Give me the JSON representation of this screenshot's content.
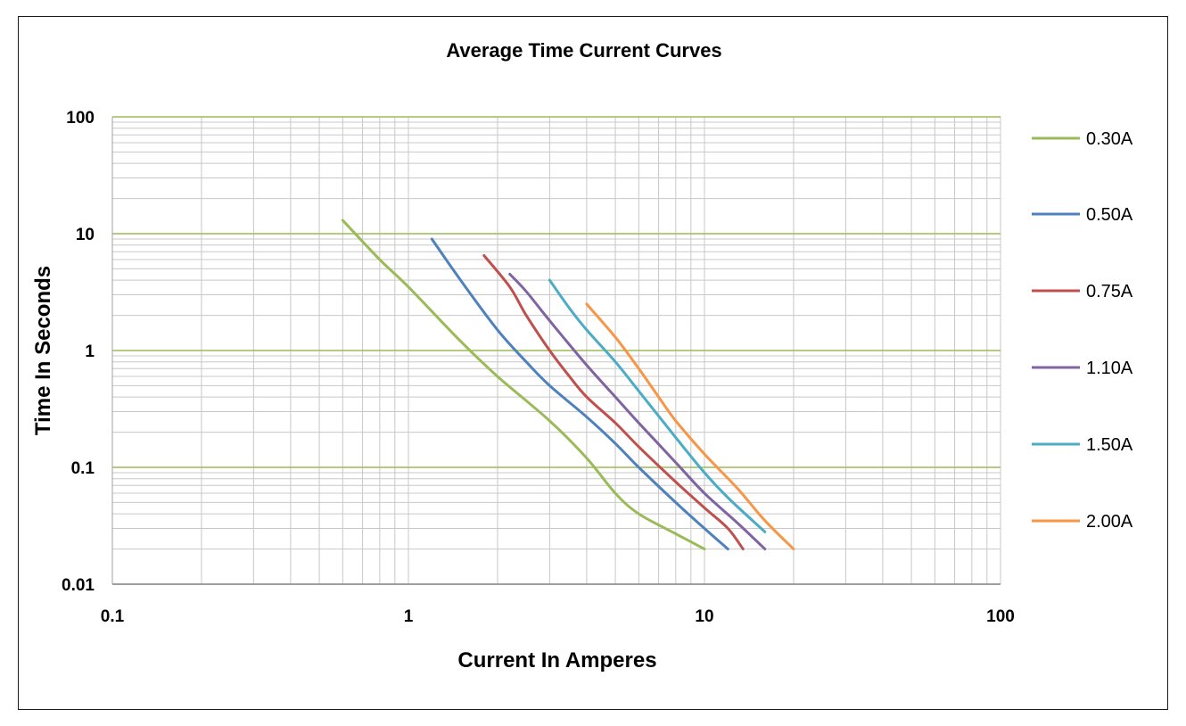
{
  "chart_data": {
    "type": "line",
    "title": "Average Time Current Curves",
    "xlabel": "Current In Amperes",
    "ylabel": "Time In Seconds",
    "xscale": "log",
    "yscale": "log",
    "xlim": [
      0.1,
      100
    ],
    "ylim": [
      0.01,
      100
    ],
    "xticks": [
      "0.1",
      "1",
      "10",
      "100"
    ],
    "yticks": [
      "100",
      "10",
      "1",
      "0.1",
      "0.01"
    ],
    "grid": true,
    "legend": "right",
    "series": [
      {
        "name": "0.30A",
        "color": "#9BBB59",
        "points": [
          [
            0.6,
            13
          ],
          [
            0.8,
            6
          ],
          [
            1.0,
            3.5
          ],
          [
            1.5,
            1.2
          ],
          [
            2.0,
            0.6
          ],
          [
            3.0,
            0.25
          ],
          [
            4.0,
            0.12
          ],
          [
            5.0,
            0.06
          ],
          [
            6.0,
            0.04
          ],
          [
            8.0,
            0.027
          ],
          [
            10.0,
            0.02
          ]
        ]
      },
      {
        "name": "0.50A",
        "color": "#4F81BD",
        "points": [
          [
            1.2,
            9
          ],
          [
            1.5,
            4
          ],
          [
            2.0,
            1.5
          ],
          [
            2.5,
            0.8
          ],
          [
            3.0,
            0.5
          ],
          [
            4.0,
            0.27
          ],
          [
            5.0,
            0.16
          ],
          [
            6.0,
            0.1
          ],
          [
            8.0,
            0.05
          ],
          [
            10.0,
            0.03
          ],
          [
            12.0,
            0.02
          ]
        ]
      },
      {
        "name": "0.75A",
        "color": "#C0504D",
        "points": [
          [
            1.8,
            6.5
          ],
          [
            2.2,
            3.5
          ],
          [
            2.5,
            2.0
          ],
          [
            3.0,
            1.0
          ],
          [
            3.5,
            0.6
          ],
          [
            4.0,
            0.4
          ],
          [
            5.0,
            0.24
          ],
          [
            6.0,
            0.15
          ],
          [
            8.0,
            0.075
          ],
          [
            10.0,
            0.045
          ],
          [
            12.0,
            0.03
          ],
          [
            13.5,
            0.02
          ]
        ]
      },
      {
        "name": "1.10A",
        "color": "#8064A2",
        "points": [
          [
            2.2,
            4.5
          ],
          [
            2.5,
            3.2
          ],
          [
            3.0,
            1.8
          ],
          [
            4.0,
            0.75
          ],
          [
            5.0,
            0.4
          ],
          [
            6.0,
            0.24
          ],
          [
            8.0,
            0.11
          ],
          [
            10.0,
            0.06
          ],
          [
            13.0,
            0.033
          ],
          [
            16.0,
            0.02
          ]
        ]
      },
      {
        "name": "1.50A",
        "color": "#4BACC6",
        "points": [
          [
            3.0,
            4.0
          ],
          [
            3.5,
            2.3
          ],
          [
            4.0,
            1.5
          ],
          [
            5.0,
            0.8
          ],
          [
            6.0,
            0.45
          ],
          [
            8.0,
            0.18
          ],
          [
            10.0,
            0.09
          ],
          [
            12.0,
            0.055
          ],
          [
            16.0,
            0.028
          ]
        ]
      },
      {
        "name": "2.00A",
        "color": "#F79646",
        "points": [
          [
            4.0,
            2.5
          ],
          [
            5.0,
            1.3
          ],
          [
            6.0,
            0.7
          ],
          [
            7.0,
            0.4
          ],
          [
            8.0,
            0.25
          ],
          [
            10.0,
            0.13
          ],
          [
            13.0,
            0.065
          ],
          [
            16.0,
            0.035
          ],
          [
            20.0,
            0.02
          ]
        ]
      }
    ]
  }
}
